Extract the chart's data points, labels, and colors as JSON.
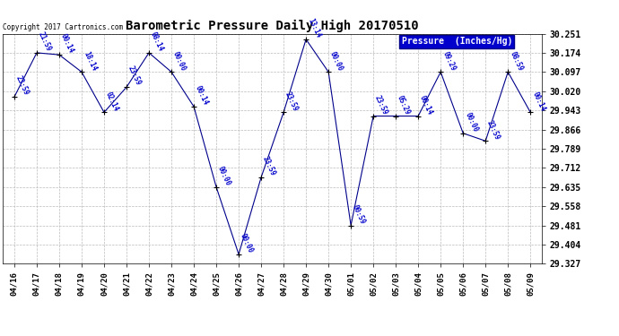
{
  "title": "Barometric Pressure Daily High 20170510",
  "copyright": "Copyright 2017 Cartronics.com",
  "legend_label": "Pressure  (Inches/Hg)",
  "x_labels": [
    "04/16",
    "04/17",
    "04/18",
    "04/19",
    "04/20",
    "04/21",
    "04/22",
    "04/23",
    "04/24",
    "04/25",
    "04/26",
    "04/27",
    "04/28",
    "04/29",
    "04/30",
    "05/01",
    "05/02",
    "05/03",
    "05/04",
    "05/05",
    "05/06",
    "05/07",
    "05/08",
    "05/09"
  ],
  "point_labels": [
    "23:59",
    "21:59",
    "00:14",
    "18:14",
    "02:14",
    "23:59",
    "08:14",
    "00:00",
    "00:14",
    "00:00",
    "00:00",
    "23:59",
    "23:59",
    "13:14",
    "00:00",
    "00:59",
    "23:59",
    "05:29",
    "00:14",
    "09:29",
    "00:00",
    "23:59",
    "08:59",
    "00:14"
  ],
  "y_values": [
    29.997,
    30.174,
    30.166,
    30.097,
    29.935,
    30.036,
    30.174,
    30.097,
    29.958,
    29.635,
    29.365,
    29.674,
    29.935,
    30.228,
    30.097,
    29.481,
    29.92,
    29.92,
    29.92,
    30.097,
    29.851,
    29.82,
    30.097,
    29.935
  ],
  "y_ticks": [
    29.327,
    29.404,
    29.481,
    29.558,
    29.635,
    29.712,
    29.789,
    29.866,
    29.943,
    30.02,
    30.097,
    30.174,
    30.251
  ],
  "y_min": 29.327,
  "y_max": 30.251,
  "line_color": "#00008B",
  "marker_color": "#000000",
  "bg_color": "#ffffff",
  "grid_color": "#bbbbbb",
  "title_color": "#000000",
  "label_color": "#0000cc",
  "legend_bg": "#0000cc",
  "legend_text": "#ffffff",
  "figwidth": 6.9,
  "figheight": 3.75,
  "dpi": 100
}
